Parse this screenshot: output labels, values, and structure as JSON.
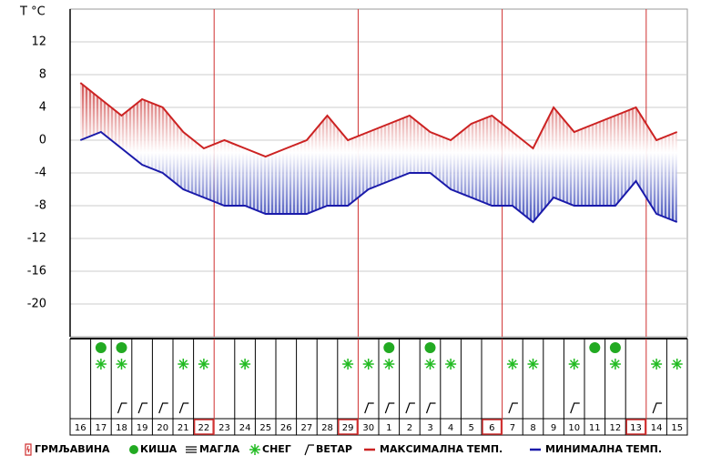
{
  "chart_data": {
    "type": "line",
    "y_label": "T °C",
    "categories": [
      "16",
      "17",
      "18",
      "19",
      "20",
      "21",
      "22",
      "23",
      "24",
      "25",
      "26",
      "27",
      "28",
      "29",
      "30",
      "1",
      "2",
      "3",
      "4",
      "5",
      "6",
      "7",
      "8",
      "9",
      "10",
      "11",
      "12",
      "13",
      "14",
      "15"
    ],
    "series": [
      {
        "name": "МАКСИМАЛНА ТЕМП.",
        "color": "#cc2222",
        "values": [
          7,
          5,
          3,
          5,
          4,
          1,
          -1,
          0,
          -1,
          -2,
          -1,
          0,
          3,
          0,
          1,
          2,
          3,
          1,
          0,
          2,
          3,
          1,
          -1,
          4,
          1,
          2,
          3,
          4,
          0,
          1
        ]
      },
      {
        "name": "МИНИМАЛНА ТЕМП.",
        "color": "#1a1aaa",
        "values": [
          0,
          1,
          -1,
          -3,
          -4,
          -6,
          -7,
          -8,
          -8,
          -9,
          -9,
          -9,
          -8,
          -8,
          -6,
          -5,
          -4,
          -4,
          -6,
          -7,
          -8,
          -8,
          -10,
          -7,
          -8,
          -8,
          -8,
          -5,
          -9,
          -10
        ]
      }
    ],
    "rain": [
      "17",
      "18",
      "1",
      "3",
      "11",
      "12"
    ],
    "snow": [
      "17",
      "18",
      "21",
      "22",
      "24",
      "29",
      "30",
      "1",
      "3",
      "4",
      "7",
      "8",
      "10",
      "12",
      "14",
      "15"
    ],
    "wind": [
      "18",
      "19",
      "20",
      "21",
      "30",
      "1",
      "2",
      "3",
      "7",
      "10",
      "14"
    ],
    "legend": [
      "ГРМЉАВИНА",
      "КИША",
      "МАГЛА",
      "СНЕГ",
      "ВЕТАР"
    ],
    "ylim": [
      -24,
      16
    ],
    "yticks": [
      -20,
      -16,
      -12,
      -8,
      -4,
      0,
      4,
      8,
      12
    ],
    "grid": true
  }
}
